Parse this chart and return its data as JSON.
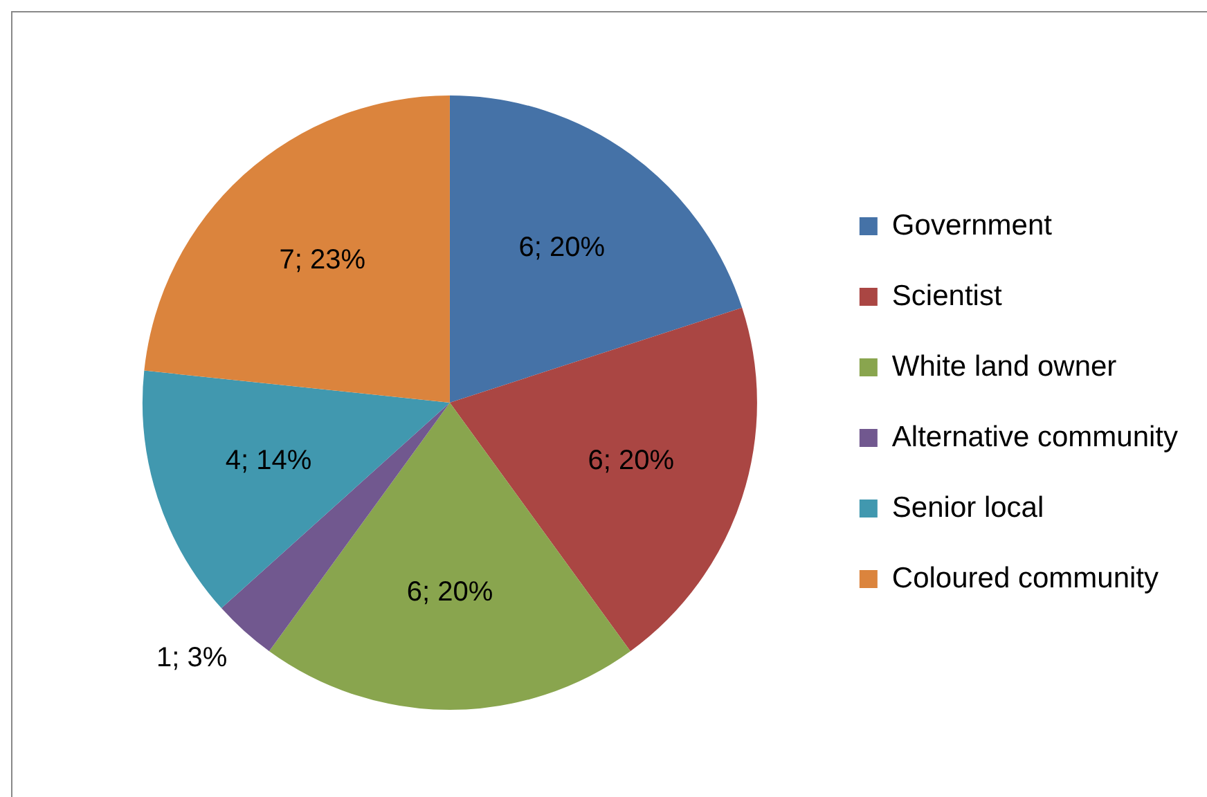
{
  "chart_data": {
    "type": "pie",
    "categories": [
      "Government",
      "Scientist",
      "White land owner",
      "Alternative community",
      "Senior local",
      "Coloured community"
    ],
    "values": [
      6,
      6,
      6,
      1,
      4,
      7
    ],
    "value_labels": [
      "6; 20%",
      "6; 20%",
      "6; 20%",
      "1; 3%",
      "4; 14%",
      "7; 23%"
    ],
    "colors": [
      "#4572a7",
      "#aa4643",
      "#89a54e",
      "#71588f",
      "#4198af",
      "#db843d"
    ],
    "legend": "right"
  }
}
